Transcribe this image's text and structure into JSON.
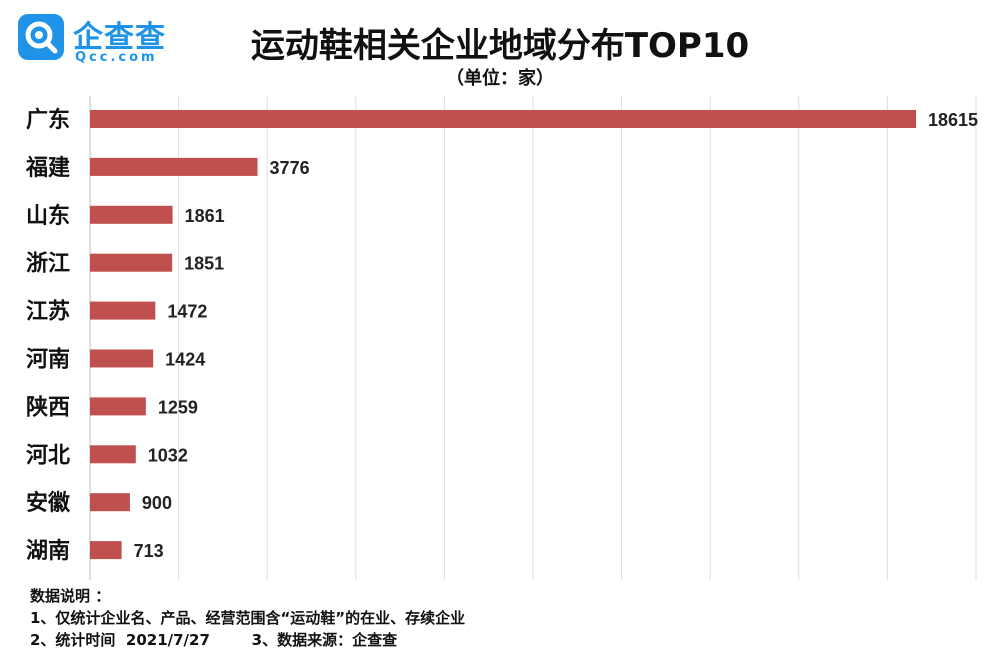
{
  "logo": {
    "name_cn": "企查查",
    "name_en": "Qcc.com"
  },
  "chart_data": {
    "type": "bar",
    "orientation": "horizontal",
    "title": "运动鞋相关企业地域分布TOP10",
    "unit": "（单位：家）",
    "categories": [
      "广东",
      "福建",
      "山东",
      "浙江",
      "江苏",
      "河南",
      "陕西",
      "河北",
      "安徽",
      "湖南"
    ],
    "values": [
      18615,
      3776,
      1861,
      1851,
      1472,
      1424,
      1259,
      1032,
      900,
      713
    ],
    "data_labels": [
      "18615",
      "3776",
      "1861",
      "1851",
      "1472",
      "1424",
      "1259",
      "1032",
      "900",
      "713"
    ],
    "xlim": [
      0,
      20000
    ],
    "grid": true,
    "legend": false,
    "bar_color": "#c0504d"
  },
  "notes": {
    "heading": "数据说明 ：",
    "line1": "1、仅统计企业名、产品、经营范围含“运动鞋”的在业、存续企业",
    "line2": "2、统计时间  2021/7/27        3、数据来源：企查查"
  },
  "colors": {
    "brand": "#1f93e8",
    "bar": "#c0504d",
    "grid": "#dddddd"
  }
}
